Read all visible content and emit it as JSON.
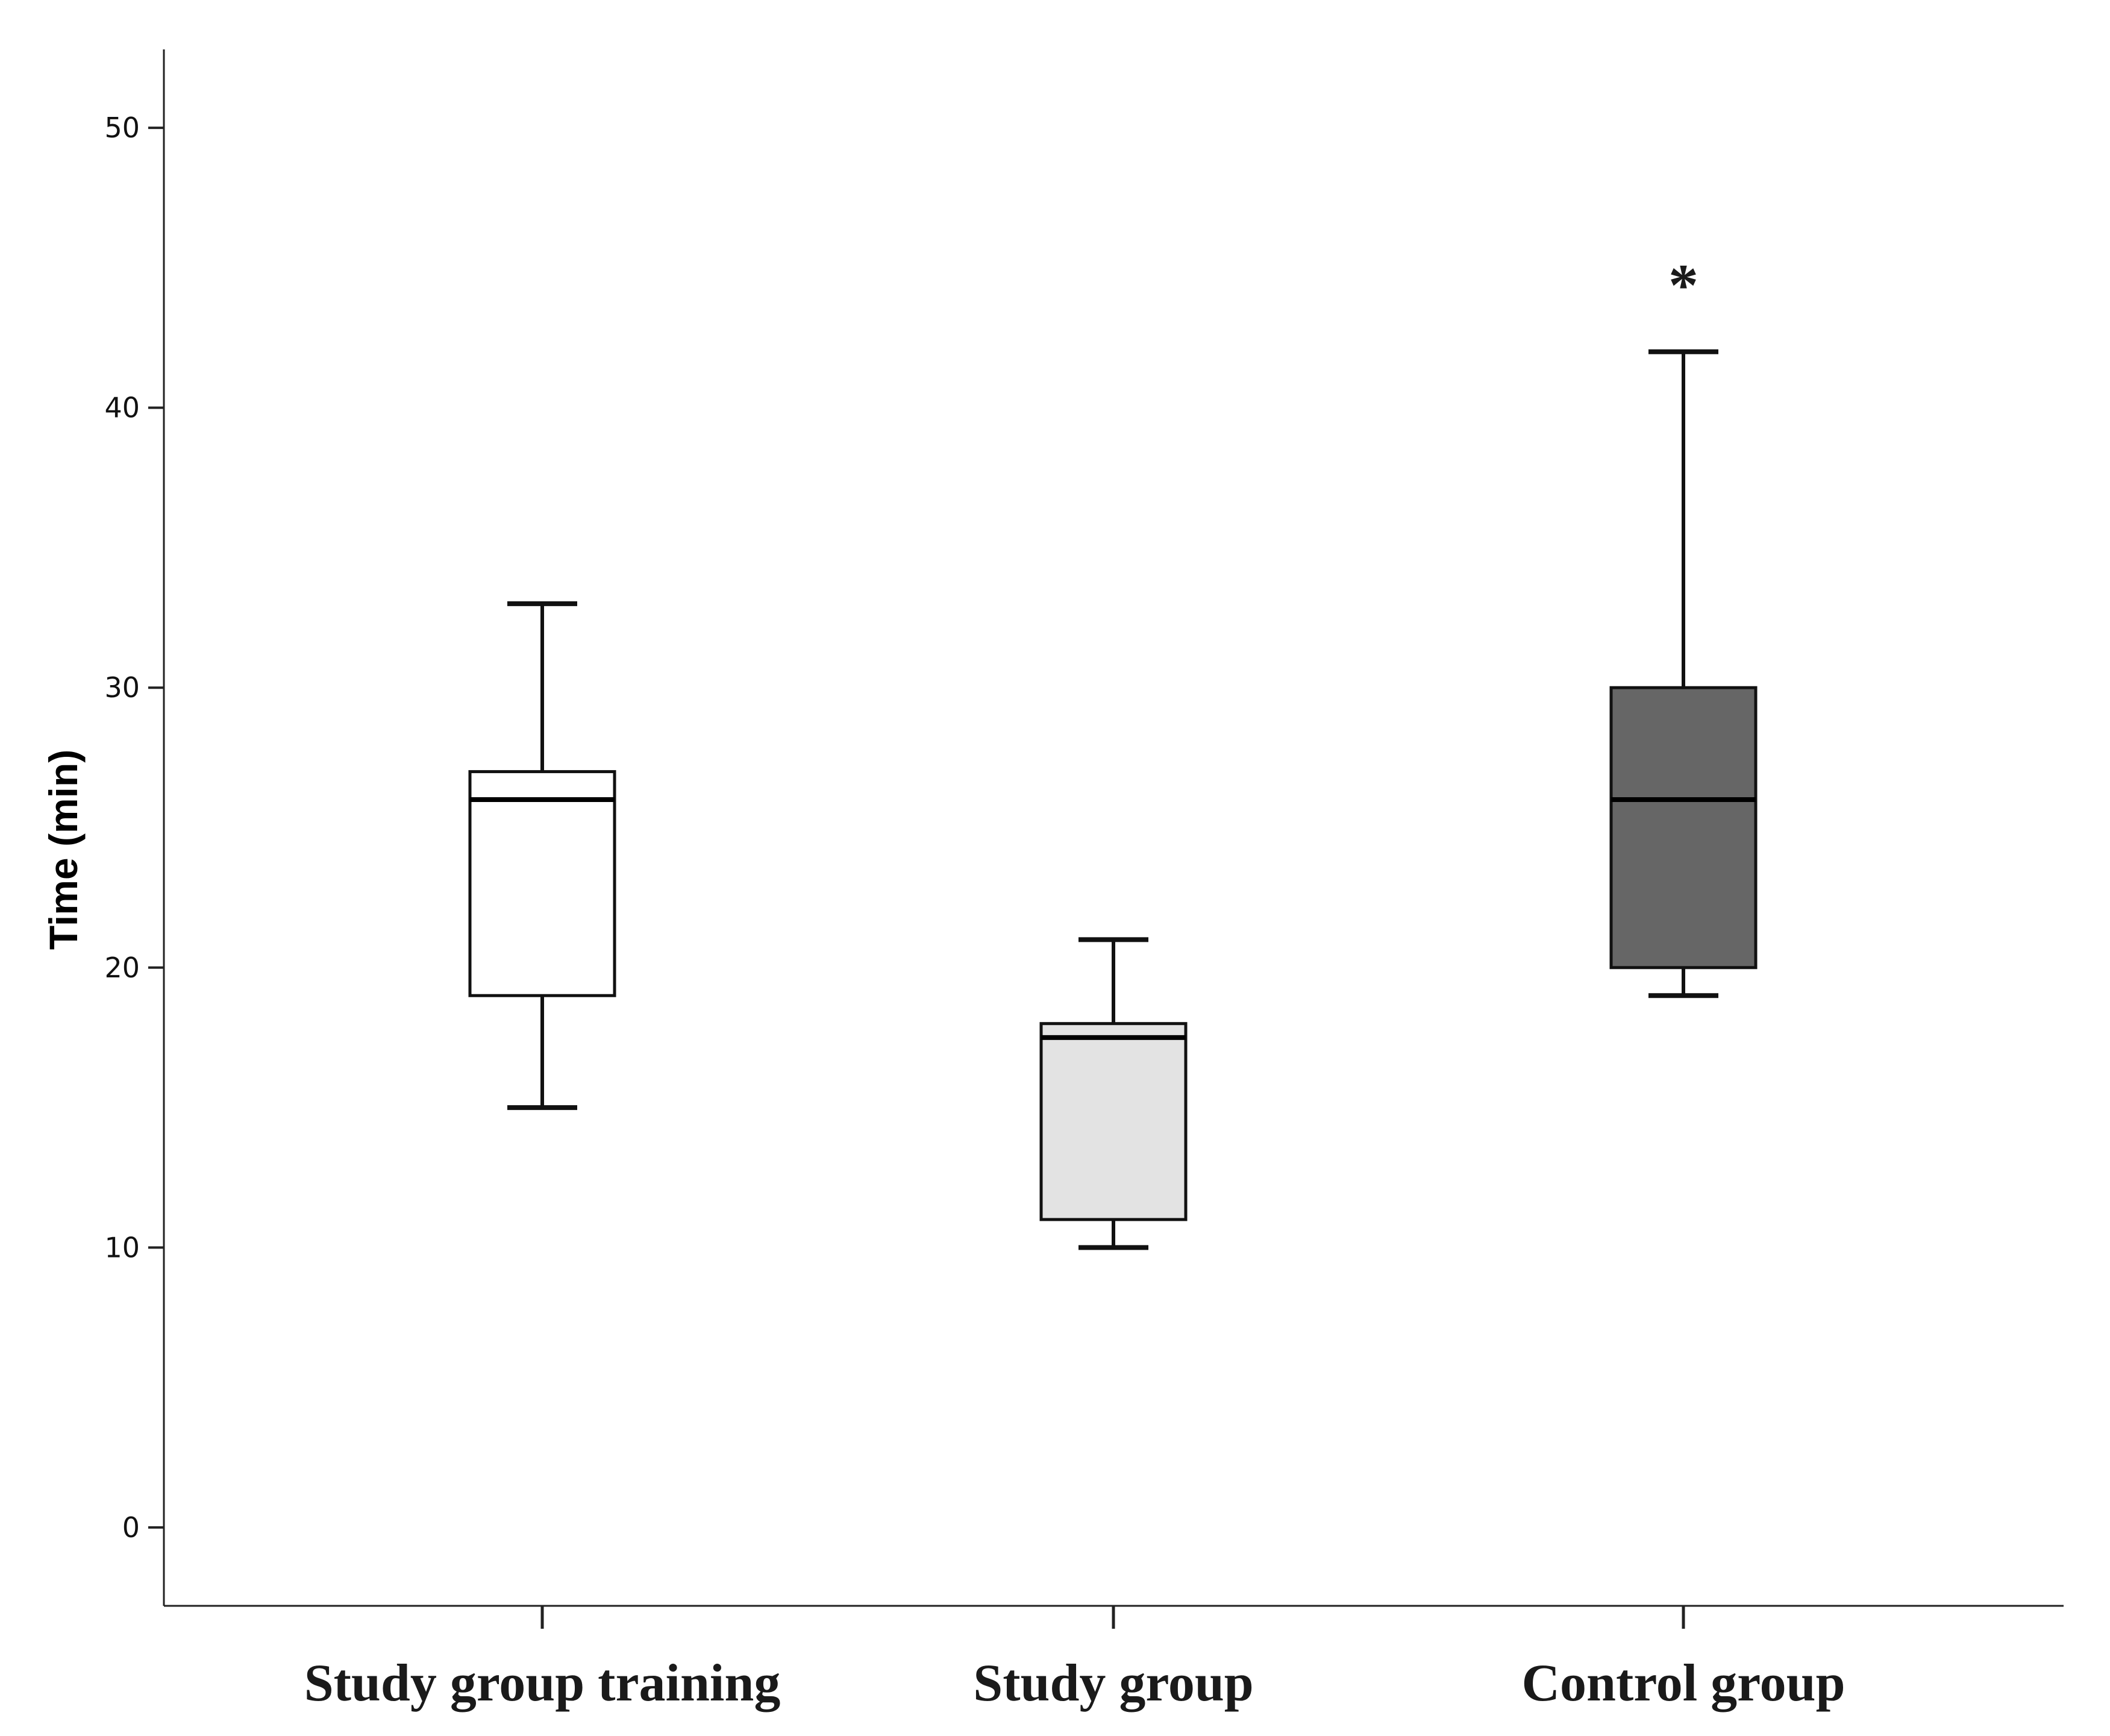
{
  "chart_data": {
    "type": "boxplot",
    "ylabel": "Time (min)",
    "xlabel": "",
    "ylim": [
      -2.8,
      52.8
    ],
    "y_ticks": [
      0,
      10,
      20,
      30,
      40,
      50
    ],
    "y_tick_labels": [
      "0",
      "10",
      "20",
      "30",
      "40",
      "50"
    ],
    "grid": false,
    "categories": [
      "Study group training",
      "Study group",
      "Control group"
    ],
    "boxes": [
      {
        "category": "Study group training",
        "whisker_low": 15,
        "q1": 19,
        "median": 26,
        "q3": 27,
        "whisker_high": 33,
        "fill": "#ffffff"
      },
      {
        "category": "Study group",
        "whisker_low": 10,
        "q1": 11,
        "median": 17.5,
        "q3": 18,
        "whisker_high": 21,
        "fill": "#e3e3e3"
      },
      {
        "category": "Control group",
        "whisker_low": 19,
        "q1": 20,
        "median": 26,
        "q3": 30,
        "whisker_high": 42,
        "fill": "#666666"
      }
    ],
    "outliers": [
      {
        "category": "Control group",
        "y": 45,
        "marker": "*"
      }
    ]
  }
}
